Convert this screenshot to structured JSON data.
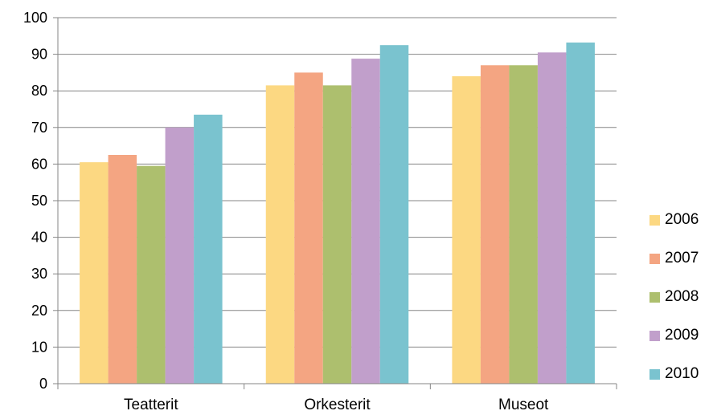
{
  "chart_data": {
    "type": "bar",
    "categories": [
      "Teatterit",
      "Orkesterit",
      "Museot"
    ],
    "series": [
      {
        "name": "2006",
        "color": "#FCD882",
        "values": [
          60.5,
          81.5,
          84.0
        ]
      },
      {
        "name": "2007",
        "color": "#F4A582",
        "values": [
          62.5,
          85.0,
          87.0
        ]
      },
      {
        "name": "2008",
        "color": "#ADBF6E",
        "values": [
          59.5,
          81.5,
          87.0
        ]
      },
      {
        "name": "2009",
        "color": "#C19FCB",
        "values": [
          70.0,
          88.8,
          90.5
        ]
      },
      {
        "name": "2010",
        "color": "#7AC3CF",
        "values": [
          73.5,
          92.5,
          93.2
        ]
      }
    ],
    "yticks": [
      "0",
      "10",
      "20",
      "30",
      "40",
      "50",
      "60",
      "70",
      "80",
      "90",
      "100"
    ],
    "ylim": [
      0,
      100
    ],
    "grid": true,
    "legend_position": "right",
    "title": "",
    "xlabel": "",
    "ylabel": ""
  }
}
